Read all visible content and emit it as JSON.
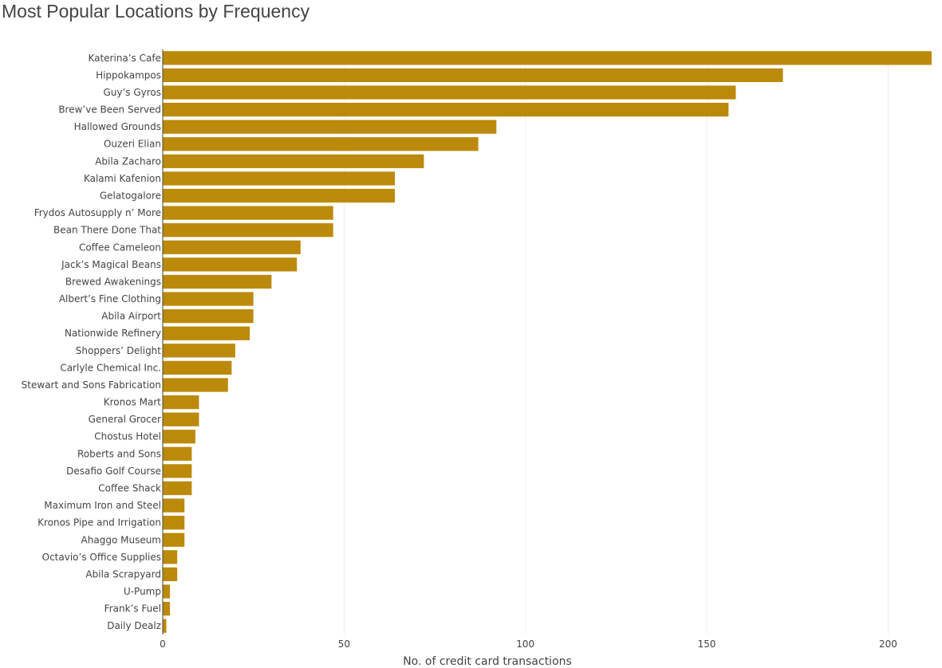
{
  "chart_data": {
    "type": "bar",
    "orientation": "horizontal",
    "title": "Most Popular Locations by Frequency",
    "xlabel": "No. of credit card transactions",
    "ylabel": "",
    "xlim": [
      0,
      212
    ],
    "xticks": [
      0,
      50,
      100,
      150,
      200
    ],
    "grid": true,
    "legend": "none",
    "bar_color": "#BC8A0A",
    "categories": [
      "Katerina’s Cafe",
      "Hippokampos",
      "Guy’s Gyros",
      "Brew’ve Been Served",
      "Hallowed Grounds",
      "Ouzeri Elian",
      "Abila Zacharo",
      "Kalami Kafenion",
      "Gelatogalore",
      "Frydos Autosupply n’ More",
      "Bean There Done That",
      "Coffee Cameleon",
      "Jack’s Magical Beans",
      "Brewed Awakenings",
      "Albert’s Fine Clothing",
      "Abila Airport",
      "Nationwide Refinery",
      "Shoppers’ Delight",
      "Carlyle Chemical Inc.",
      "Stewart and Sons Fabrication",
      "Kronos Mart",
      "General Grocer",
      "Chostus Hotel",
      "Roberts and Sons",
      "Desafio Golf Course",
      "Coffee Shack",
      "Maximum Iron and Steel",
      "Kronos Pipe and Irrigation",
      "Ahaggo Museum",
      "Octavio’s Office Supplies",
      "Abila Scrapyard",
      "U-Pump",
      "Frank’s Fuel",
      "Daily Dealz"
    ],
    "values": [
      212,
      171,
      158,
      156,
      92,
      87,
      72,
      64,
      64,
      47,
      47,
      38,
      37,
      30,
      25,
      25,
      24,
      20,
      19,
      18,
      10,
      10,
      9,
      8,
      8,
      8,
      6,
      6,
      6,
      4,
      4,
      2,
      2,
      1
    ]
  }
}
